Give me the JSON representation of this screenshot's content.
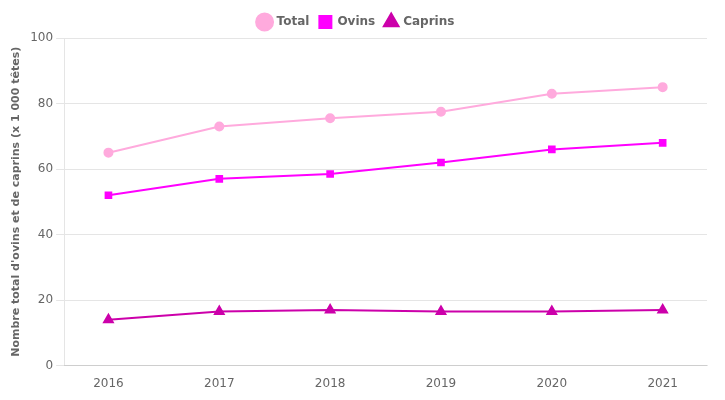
{
  "chart_data": {
    "type": "line",
    "y_label": "Nombre total d'ovins et de caprins (x 1 000 têtes)",
    "x": [
      2016,
      2017,
      2018,
      2019,
      2020,
      2021
    ],
    "series": [
      {
        "name": "Total",
        "color": "#ffaadd",
        "marker": "circle",
        "values": [
          65,
          73,
          75.5,
          77.5,
          83,
          85
        ]
      },
      {
        "name": "Ovins",
        "color": "#ff00ff",
        "marker": "square",
        "values": [
          52,
          57,
          58.5,
          62,
          66,
          68
        ]
      },
      {
        "name": "Caprins",
        "color": "#cc00aa",
        "marker": "triangle",
        "values": [
          14,
          16.5,
          17,
          16.5,
          16.5,
          17
        ]
      }
    ],
    "xlim": [
      2015.6,
      2021.4
    ],
    "xticks": [
      2016,
      2017,
      2018,
      2019,
      2020,
      2021
    ],
    "ylim": [
      0,
      100
    ],
    "yticks": [
      0,
      20,
      40,
      60,
      80,
      100
    ],
    "grid": "y",
    "legend": "top"
  }
}
